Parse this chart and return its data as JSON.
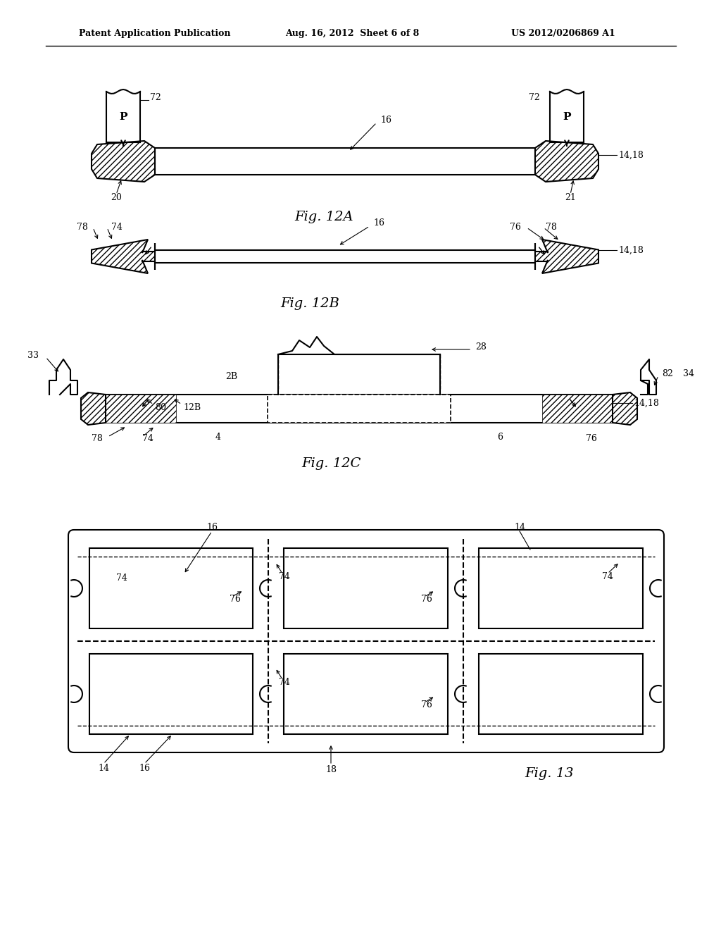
{
  "header_left": "Patent Application Publication",
  "header_mid": "Aug. 16, 2012  Sheet 6 of 8",
  "header_right": "US 2012/0206869 A1",
  "bg_color": "#ffffff",
  "line_color": "#000000",
  "fig12A_label": "Fig. 12A",
  "fig12B_label": "Fig. 12B",
  "fig12C_label": "Fig. 12C",
  "fig13_label": "Fig. 13"
}
